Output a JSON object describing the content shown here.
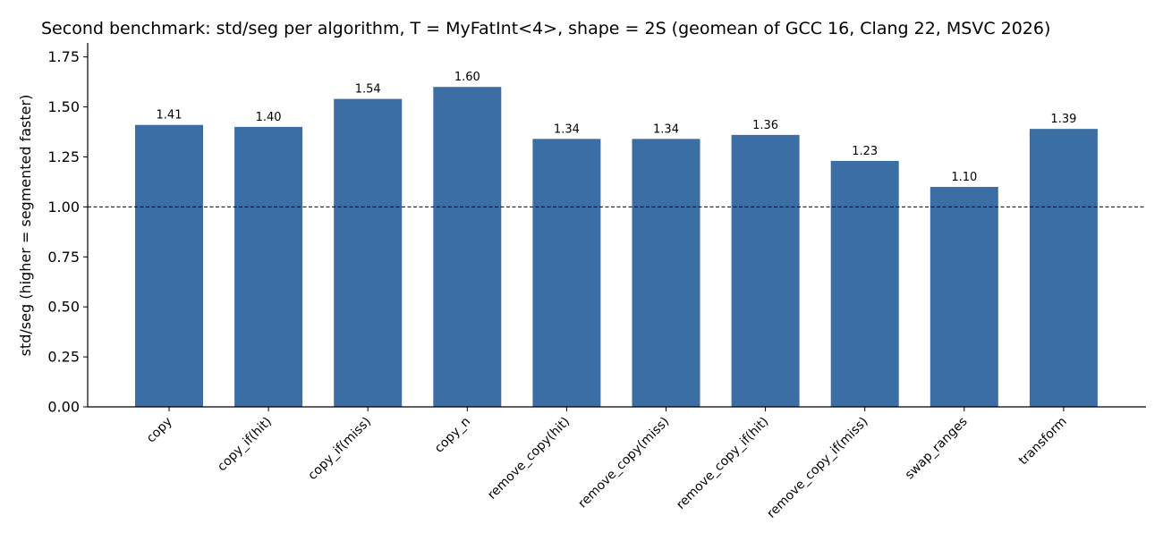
{
  "chart_data": {
    "type": "bar",
    "title": "Second benchmark: std/seg per algorithm, T = MyFatInt<4>, shape = 2S (geomean of GCC 16, Clang 22, MSVC 2026)",
    "xlabel": "",
    "ylabel": "std/seg  (higher = segmented faster)",
    "ylim": [
      0,
      1.82
    ],
    "yticks": [
      0.0,
      0.25,
      0.5,
      0.75,
      1.0,
      1.25,
      1.5,
      1.75
    ],
    "ytick_labels": [
      "0.00",
      "0.25",
      "0.50",
      "0.75",
      "1.00",
      "1.25",
      "1.50",
      "1.75"
    ],
    "reference_line": 1.0,
    "bar_color": "#3b6ea5",
    "grid": false,
    "categories": [
      "copy",
      "copy_if(hit)",
      "copy_if(miss)",
      "copy_n",
      "remove_copy(hit)",
      "remove_copy(miss)",
      "remove_copy_if(hit)",
      "remove_copy_if(miss)",
      "swap_ranges",
      "transform"
    ],
    "values": [
      1.41,
      1.4,
      1.54,
      1.6,
      1.34,
      1.34,
      1.36,
      1.23,
      1.1,
      1.39
    ],
    "value_labels": [
      "1.41",
      "1.40",
      "1.54",
      "1.60",
      "1.34",
      "1.34",
      "1.36",
      "1.23",
      "1.10",
      "1.39"
    ]
  }
}
